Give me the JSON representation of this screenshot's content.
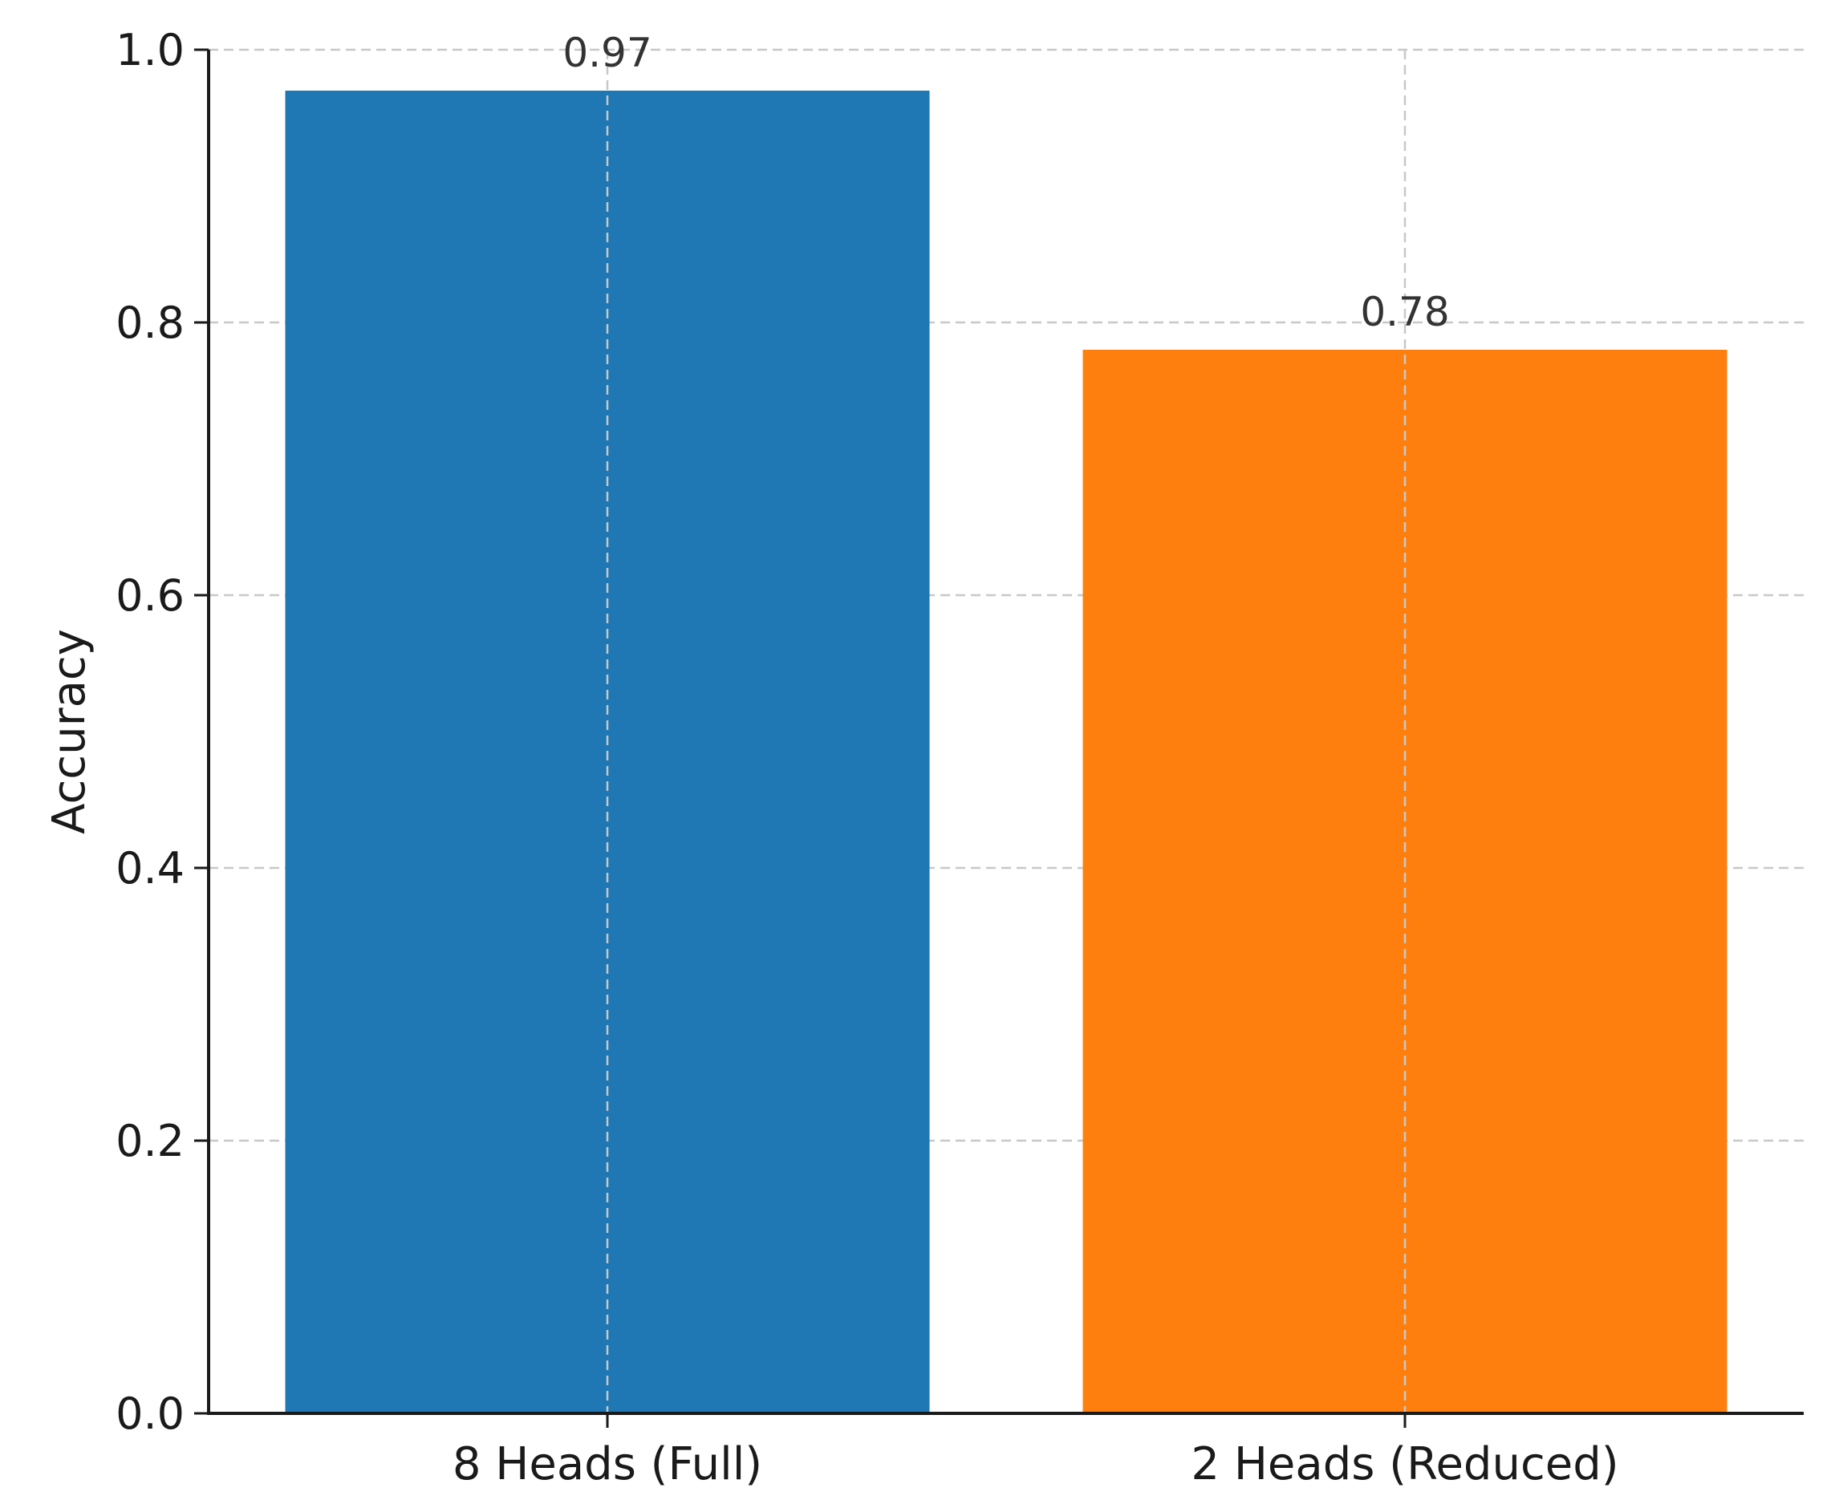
{
  "chart_data": {
    "type": "bar",
    "categories": [
      "8 Heads (Full)",
      "2 Heads (Reduced)"
    ],
    "values": [
      0.97,
      0.78
    ],
    "data_labels": [
      "0.97",
      "0.78"
    ],
    "colors": [
      "#1f77b4",
      "#ff7f0e"
    ],
    "title": "",
    "xlabel": "",
    "ylabel": "Accuracy",
    "ylim": [
      0,
      1.0
    ],
    "yticks": [
      0.0,
      0.2,
      0.4,
      0.6,
      0.8,
      1.0
    ],
    "ytick_labels": [
      "0.0",
      "0.2",
      "0.4",
      "0.6",
      "0.8",
      "1.0"
    ],
    "grid": true,
    "grid_style": "dashed"
  }
}
